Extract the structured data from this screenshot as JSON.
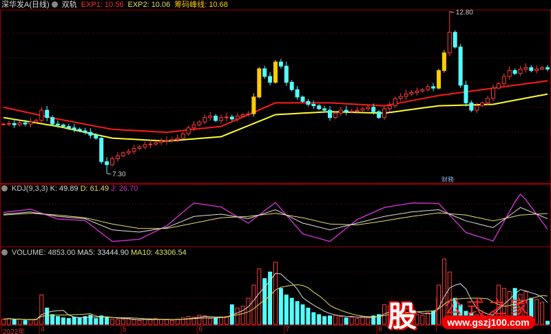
{
  "header": {
    "stock_name": "深华发A(日线)",
    "indicator": "双轨",
    "exp1": "EXP1: 10.56",
    "exp2": "EXP2: 10.06",
    "peak": "筹码峰线: 10.68"
  },
  "kdj_header": {
    "name": "KDJ(9,3,3)",
    "k": "K: 49.89",
    "d": "D: 61.49",
    "j": "J: 26.70"
  },
  "volume_header": {
    "name": "VOLUME: 4853.00",
    "ma5": "MA5: 33444.90",
    "ma10": "MA10: 43306.54"
  },
  "annotations": {
    "high": "12.80",
    "low": "7.30",
    "finance_badge": "财務"
  },
  "x_axis": {
    "labels": [
      "2022年",
      "4",
      "5",
      "6",
      "7",
      "8"
    ],
    "label_candle_index": [
      0,
      7,
      22,
      36,
      52,
      69
    ]
  },
  "colors": {
    "up": "#ff3c3c",
    "down": "#54ffff",
    "strong": "#ffcc00",
    "ma_red": "#ff1a1a",
    "ma_yellow": "#ffff33",
    "k": "#e0e0e0",
    "d": "#e0e070",
    "j": "#cc33cc",
    "grid": "#801010"
  },
  "watermark": {
    "logo": "股",
    "title": "公式之家",
    "url": "www.gszj100.com"
  },
  "chart_data": {
    "type": "candlestick",
    "price_range": [
      7.3,
      12.8
    ],
    "closes": [
      8.98,
      9.0,
      8.95,
      9.02,
      8.98,
      9.05,
      9.1,
      9.45,
      9.2,
      8.98,
      8.95,
      8.9,
      8.85,
      8.8,
      8.75,
      8.7,
      8.6,
      8.5,
      7.7,
      7.6,
      7.8,
      7.9,
      8.0,
      8.05,
      8.15,
      8.2,
      8.28,
      8.3,
      8.35,
      8.4,
      8.42,
      8.45,
      8.5,
      8.65,
      8.85,
      8.95,
      9.05,
      9.2,
      9.25,
      9.1,
      9.2,
      9.22,
      9.15,
      9.25,
      9.3,
      9.33,
      9.9,
      10.86,
      10.6,
      10.4,
      11.09,
      10.95,
      10.4,
      10.15,
      9.9,
      9.75,
      9.65,
      9.6,
      9.5,
      9.45,
      9.2,
      9.35,
      9.45,
      9.4,
      9.42,
      9.45,
      9.5,
      9.55,
      9.4,
      9.2,
      9.5,
      9.6,
      9.85,
      9.92,
      10.0,
      10.05,
      10.1,
      10.15,
      10.25,
      10.2,
      10.8,
      11.4,
      12.1,
      11.6,
      10.3,
      9.7,
      9.45,
      9.6,
      9.7,
      9.85,
      10.2,
      10.35,
      10.6,
      10.8,
      10.7,
      10.85,
      10.9,
      10.8,
      10.85,
      10.9,
      10.85
    ],
    "strong_up_indices": [
      46,
      47,
      50,
      80,
      81
    ],
    "ma_yellow_every10": [
      9.2,
      8.9,
      8.5,
      8.4,
      8.55,
      9.3,
      9.4,
      9.35,
      9.6,
      9.65,
      10.0
    ],
    "ma_red_every10": [
      9.55,
      9.15,
      8.8,
      8.7,
      8.9,
      9.7,
      9.7,
      9.6,
      9.95,
      10.2,
      10.45
    ],
    "kdj_k_every5": [
      60,
      65,
      55,
      50,
      25,
      20,
      30,
      55,
      60,
      50,
      70,
      40,
      25,
      40,
      55,
      65,
      70,
      45,
      30,
      75,
      49.89
    ],
    "kdj_d_every5": [
      58,
      62,
      58,
      52,
      38,
      28,
      28,
      40,
      52,
      55,
      62,
      52,
      38,
      36,
      45,
      55,
      63,
      58,
      45,
      58,
      61.49
    ],
    "volumes": [
      8000,
      9000,
      7000,
      8000,
      6000,
      7000,
      8000,
      45000,
      25000,
      15000,
      12000,
      10000,
      9000,
      11000,
      10000,
      12000,
      14000,
      9000,
      13000,
      10000,
      8000,
      7000,
      8000,
      9000,
      7000,
      6000,
      8000,
      7000,
      9000,
      8000,
      7000,
      6000,
      8000,
      10000,
      12000,
      11000,
      14000,
      13000,
      9000,
      10000,
      11000,
      12000,
      30000,
      25000,
      28000,
      40000,
      60000,
      85000,
      70000,
      80000,
      95000,
      55000,
      45000,
      40000,
      35000,
      30000,
      25000,
      18000,
      15000,
      12000,
      13000,
      14000,
      12000,
      10000,
      11000,
      9000,
      12000,
      10000,
      13000,
      15000,
      30000,
      28000,
      25000,
      22000,
      18000,
      16000,
      15000,
      14000,
      18000,
      20000,
      60000,
      100000,
      80000,
      40000,
      30000,
      20000,
      18000,
      15000,
      14000,
      12000,
      13000,
      60000,
      55000,
      50000,
      55000,
      46000,
      50000,
      40000,
      38000,
      34000,
      4853
    ]
  }
}
